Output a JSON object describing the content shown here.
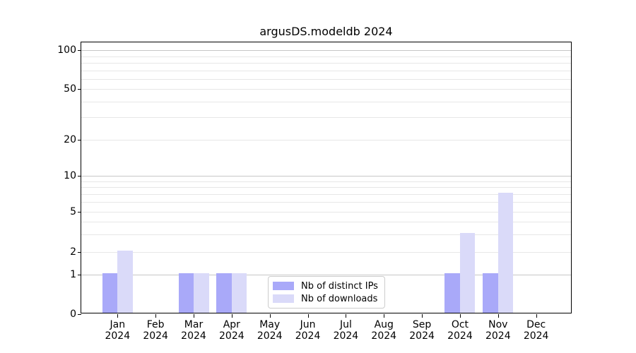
{
  "chart": {
    "title": "argusDS.modeldb 2024",
    "colors": {
      "distinct_ips": "#a9a9f9",
      "downloads": "#dadaf9",
      "grid_minor": "#e7e7e7",
      "grid_major": "#c6c6c6",
      "spine": "#000000"
    },
    "legend": {
      "items": [
        {
          "label": "Nb of distinct IPs"
        },
        {
          "label": "Nb of downloads"
        }
      ]
    }
  },
  "chart_data": {
    "type": "bar",
    "title": "argusDS.modeldb 2024",
    "categories": [
      "Jan 2024",
      "Feb 2024",
      "Mar 2024",
      "Apr 2024",
      "May 2024",
      "Jun 2024",
      "Jul 2024",
      "Aug 2024",
      "Sep 2024",
      "Oct 2024",
      "Nov 2024",
      "Dec 2024"
    ],
    "series": [
      {
        "name": "Nb of distinct IPs",
        "color": "#a9a9f9",
        "values": [
          1,
          0,
          1,
          1,
          0,
          0,
          0,
          0,
          0,
          1,
          1,
          0
        ]
      },
      {
        "name": "Nb of downloads",
        "color": "#dadaf9",
        "values": [
          2,
          0,
          1,
          1,
          0,
          0,
          0,
          0,
          0,
          3,
          7,
          0
        ]
      }
    ],
    "xlabel": "",
    "ylabel": "",
    "yscale": "log-like (linear from 0 to 1, logarithmic above 1)",
    "yticks": [
      0,
      1,
      2,
      5,
      10,
      20,
      50,
      100
    ],
    "ylim": [
      0,
      115
    ],
    "grid": {
      "major_values": [
        1,
        10,
        100
      ],
      "minor_values": [
        2,
        3,
        4,
        5,
        6,
        7,
        8,
        9,
        20,
        30,
        40,
        50,
        60,
        70,
        80,
        90
      ]
    },
    "legend_position": "inside lower-center"
  }
}
